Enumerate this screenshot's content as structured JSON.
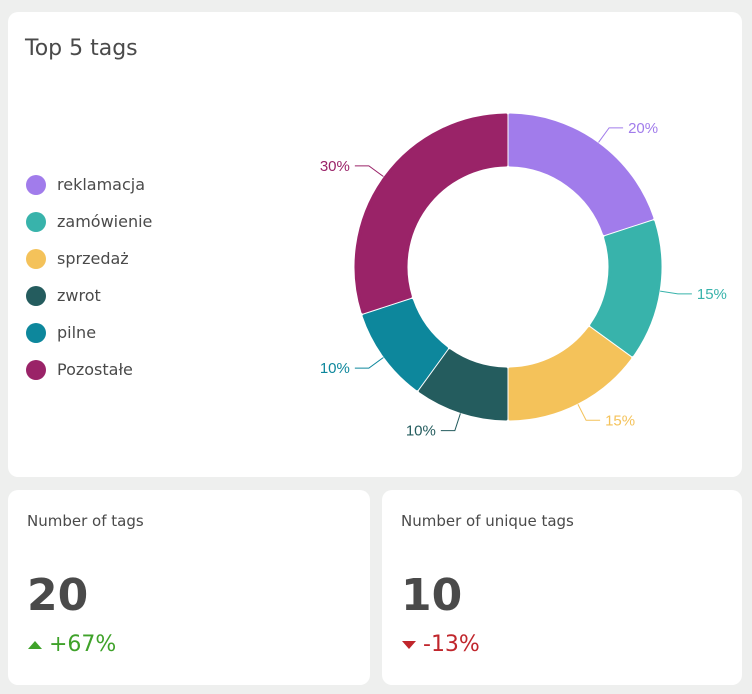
{
  "chart_card": {
    "title": "Top 5 tags"
  },
  "chart_data": {
    "type": "pie",
    "title": "Top 5 tags",
    "legend_position": "left",
    "labels": [
      "reklamacja",
      "zamówienie",
      "sprzedaż",
      "zwrot",
      "pilne",
      "Pozostałe"
    ],
    "values": [
      20,
      15,
      15,
      10,
      10,
      30
    ],
    "value_labels": [
      "20%",
      "15%",
      "15%",
      "10%",
      "10%",
      "30%"
    ],
    "colors": [
      "#a17ceb",
      "#38b3ab",
      "#f4c25a",
      "#245c5e",
      "#0d879c",
      "#9a2368"
    ]
  },
  "stats": [
    {
      "title": "Number of tags",
      "value": "20",
      "change": "+67%",
      "direction": "up",
      "color": "#3fa22a"
    },
    {
      "title": "Number of unique tags",
      "value": "10",
      "change": "-13%",
      "direction": "down",
      "color": "#c0262c"
    }
  ]
}
